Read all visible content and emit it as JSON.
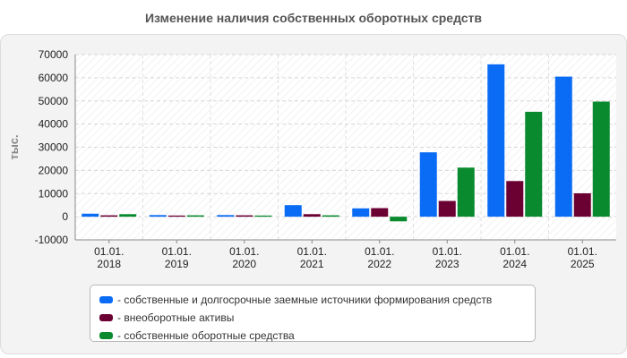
{
  "chart_data": {
    "type": "bar",
    "title": "Изменение наличия собственных оборотных средств",
    "ylabel": "тыс.",
    "xlabel": "",
    "ylim": [
      -10000,
      70000
    ],
    "yticks": [
      -10000,
      0,
      10000,
      20000,
      30000,
      40000,
      50000,
      60000,
      70000
    ],
    "categories": [
      "01.01.\n2018",
      "01.01.\n2019",
      "01.01.\n2020",
      "01.01.\n2021",
      "01.01.\n2022",
      "01.01.\n2023",
      "01.01.\n2024",
      "01.01.\n2025"
    ],
    "series": [
      {
        "name": "- собственные и долгосрочные заемные источники формирования средств",
        "color": "#0a6cf5",
        "values": [
          1300,
          700,
          700,
          5000,
          3600,
          27800,
          65800,
          60500
        ]
      },
      {
        "name": "- внеоборотные активы",
        "color": "#6b0032",
        "values": [
          600,
          500,
          600,
          1100,
          3700,
          6800,
          15400,
          10100
        ]
      },
      {
        "name": "- собственные оборотные средства",
        "color": "#0a8a2e",
        "values": [
          1100,
          600,
          500,
          600,
          -2000,
          21200,
          45300,
          49700
        ]
      }
    ],
    "grid": true,
    "legend_position": "bottom"
  }
}
